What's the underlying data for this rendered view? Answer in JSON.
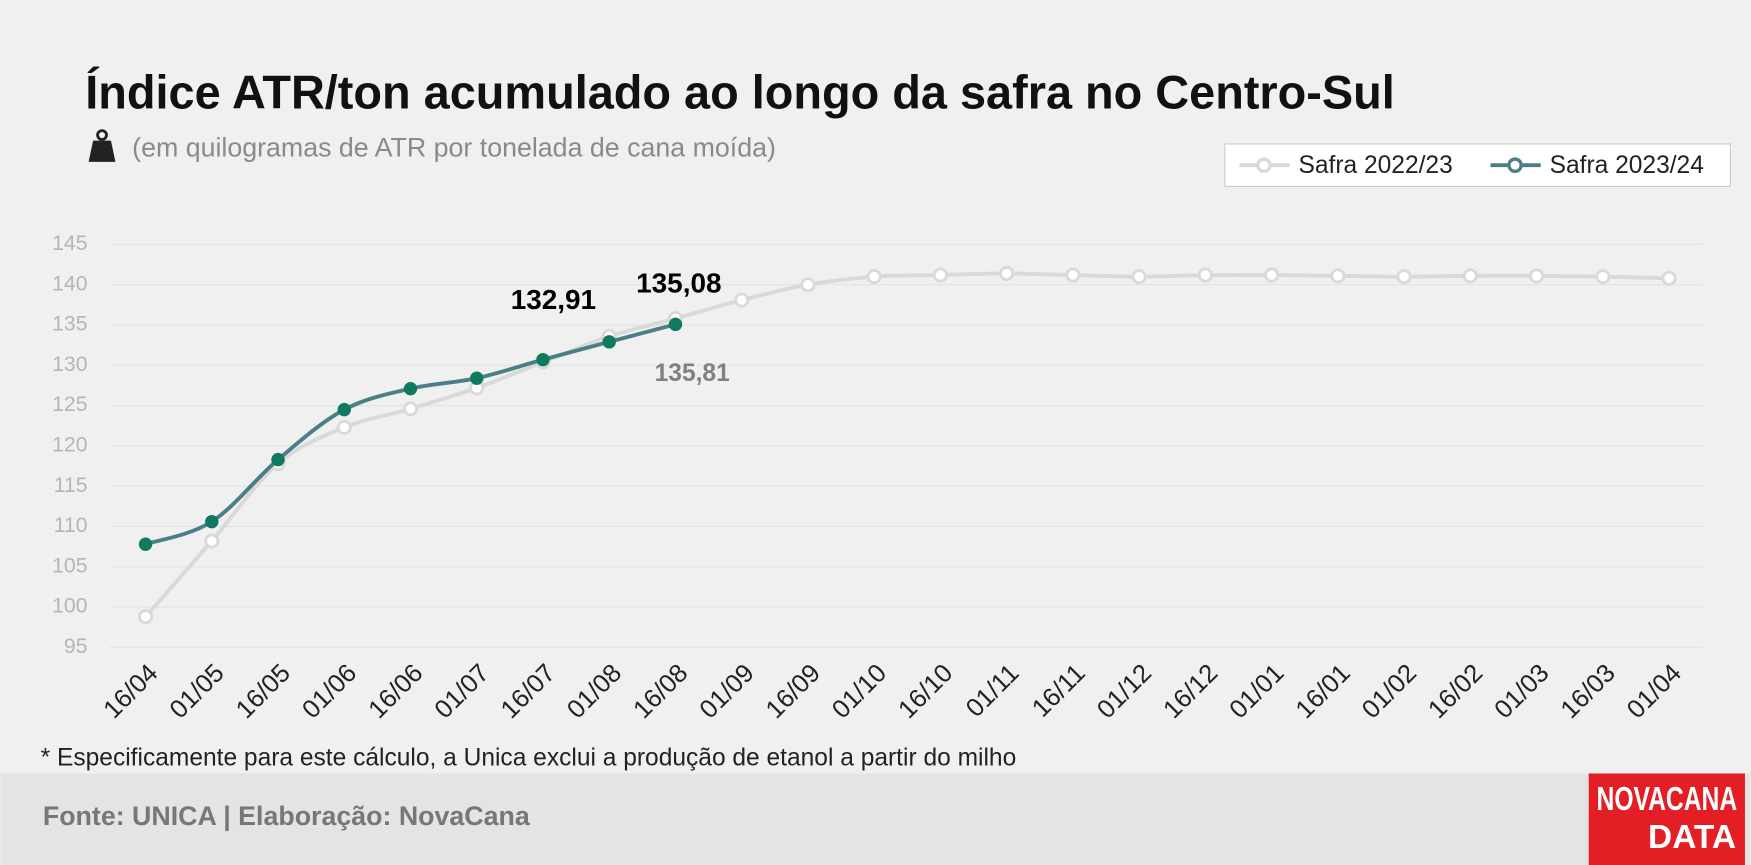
{
  "chart_data": {
    "type": "line",
    "title": "Índice ATR/ton acumulado ao longo da safra no Centro-Sul",
    "subtitle": "(em quilogramas de ATR por tonelada de cana moída)",
    "categories": [
      "16/04",
      "01/05",
      "16/05",
      "01/06",
      "16/06",
      "01/07",
      "16/07",
      "01/08",
      "16/08",
      "01/09",
      "16/09",
      "01/10",
      "16/10",
      "01/11",
      "16/11",
      "01/12",
      "16/12",
      "01/01",
      "16/01",
      "01/02",
      "16/02",
      "01/03",
      "16/03",
      "01/04"
    ],
    "series": [
      {
        "name": "Safra 2022/23",
        "color": "#d9d9d9",
        "marker_fill": "#ffffff",
        "label_color": "#808080",
        "values": [
          98.8,
          108.2,
          117.8,
          122.3,
          124.6,
          127.2,
          130.4,
          133.6,
          135.81,
          138.1,
          140.0,
          141.0,
          141.2,
          141.4,
          141.2,
          141.0,
          141.2,
          141.2,
          141.1,
          141.0,
          141.1,
          141.1,
          141.0,
          140.8
        ],
        "value_labels": [
          null,
          null,
          null,
          null,
          null,
          null,
          null,
          null,
          "135,81",
          null,
          null,
          null,
          null,
          null,
          null,
          null,
          null,
          null,
          null,
          null,
          null,
          null,
          null,
          null
        ]
      },
      {
        "name": "Safra 2023/24",
        "color": "#4a7f8a",
        "marker_fill": "#0f7a5f",
        "label_color": "#000000",
        "values": [
          107.8,
          110.6,
          118.3,
          124.5,
          127.1,
          128.4,
          130.7,
          132.91,
          135.08,
          null,
          null,
          null,
          null,
          null,
          null,
          null,
          null,
          null,
          null,
          null,
          null,
          null,
          null,
          null
        ],
        "value_labels": [
          null,
          null,
          null,
          null,
          null,
          null,
          null,
          "132,91",
          "135,08",
          null,
          null,
          null,
          null,
          null,
          null,
          null,
          null,
          null,
          null,
          null,
          null,
          null,
          null,
          null
        ]
      }
    ],
    "ylim": [
      95,
      145
    ],
    "yticks": [
      95,
      100,
      105,
      110,
      115,
      120,
      125,
      130,
      135,
      140,
      145
    ],
    "grid": true,
    "legend": "top-right",
    "footnote": "* Especificamente para este cálculo, a Unica exclui a produção de etanol a partir do milho",
    "source": "Fonte: UNICA | Elaboração: NovaCana",
    "logo": [
      "NOVACANA",
      "DATA"
    ]
  }
}
